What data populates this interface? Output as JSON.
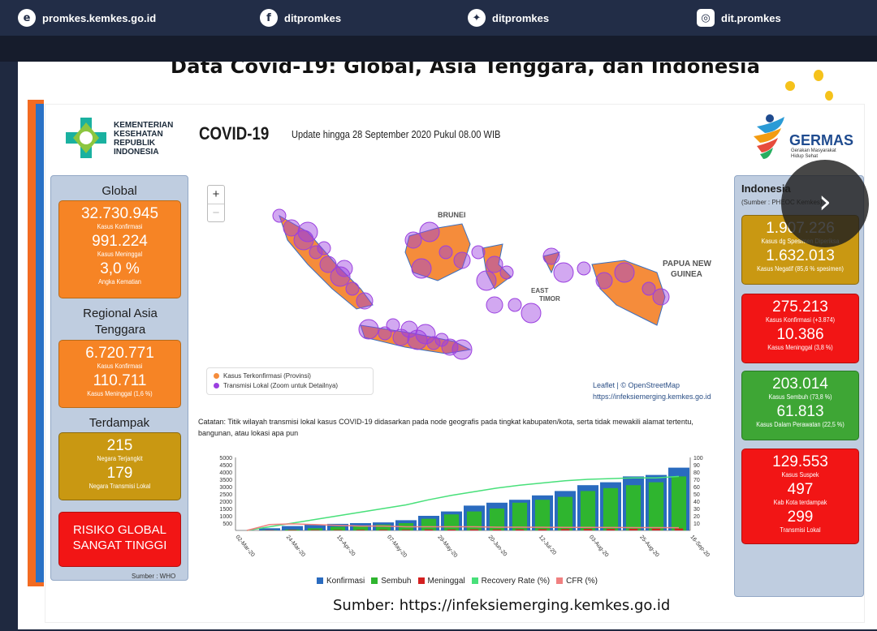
{
  "topbar": {
    "website": "promkes.kemkes.go.id",
    "facebook": "ditpromkes",
    "twitter": "ditpromkes",
    "instagram": "dit.promkes"
  },
  "slide_title": "Data Covid-19: Global, Asia Tenggara, dan Indonesia",
  "header": {
    "ministry": [
      "KEMENTERIAN",
      "KESEHATAN",
      "REPUBLIK",
      "INDONESIA"
    ],
    "covid_title": "COVID-19",
    "update": "Update hingga 28 September 2020 Pukul 08.00 WIB",
    "germas": "GERMAS",
    "germas_sub": [
      "Gerakan Masyarakat",
      "Hidup Sehat"
    ]
  },
  "global": {
    "label": "Global",
    "confirmed": "32.730.945",
    "confirmed_label": "Kasus Konfirmasi",
    "deaths": "991.224",
    "deaths_label": "Kasus Meninggal",
    "cfr": "3,0 %",
    "cfr_label": "Angka Kematian"
  },
  "sea": {
    "label": "Regional Asia Tenggara",
    "confirmed": "6.720.771",
    "confirmed_label": "Kasus Konfirmasi",
    "deaths": "110.711",
    "deaths_label": "Kasus Meninggal (1,6 %)"
  },
  "affected": {
    "label": "Terdampak",
    "countries": "215",
    "countries_label": "Negara Terjangkit",
    "local": "179",
    "local_label": "Negara Transmisi Lokal"
  },
  "risk": {
    "line1": "RISIKO GLOBAL",
    "line2": "SANGAT TINGGI"
  },
  "who_source": "Sumber : WHO",
  "indonesia": {
    "label": "Indonesia",
    "source": "(Sumber : PHEOC Kemkes)",
    "specimen": "1.907.226",
    "specimen_label": "Kasus dg Spesimen Diperiksa",
    "negative": "1.632.013",
    "negative_label": "Kasus Negatif (85,6 % spesimen)",
    "confirmed": "275.213",
    "confirmed_label": "Kasus Konfirmasi (+3.874)",
    "deaths": "10.386",
    "deaths_label": "Kasus Meninggal (3,8 %)",
    "recovered": "203.014",
    "recovered_label": "Kasus Sembuh (73,8 %)",
    "treated": "61.813",
    "treated_label": "Kasus Dalam Perawatan (22,5 %)",
    "suspect": "129.553",
    "suspect_label": "Kasus Suspek",
    "districts": "497",
    "districts_label": "Kab Kota terdampak",
    "local": "299",
    "local_label": "Transmisi Lokal"
  },
  "map": {
    "zoom_in": "+",
    "zoom_out": "−",
    "labels": {
      "brunei": "BRUNEI",
      "png1": "PAPUA NEW",
      "png2": "GUINEA",
      "et1": "EAST",
      "et2": "TIMOR"
    },
    "legend_provinces": "Kasus Terkonfirmasi (Provinsi)",
    "legend_local": "Transmisi Lokal (Zoom untuk Detailnya)",
    "attribution_leaflet": "Leaflet",
    "attribution_osm": "| © OpenStreetMap",
    "attribution_url": "https://infeksiemerging.kemkes.go.id"
  },
  "note": "Catatan: Titik wilayah transmisi lokal kasus COVID-19 didasarkan pada node geografis pada tingkat kabupaten/kota, serta tidak mewakili alamat tertentu, bangunan, atau lokasi apa pun",
  "chart_data": {
    "type": "bar",
    "x_tick_labels": [
      "02-Mar-20",
      "24-Mar-20",
      "15-Apr-20",
      "07-May-20",
      "29-May-20",
      "20-Jun-20",
      "12-Jul-20",
      "03-Aug-20",
      "25-Aug-20",
      "16-Sep-20"
    ],
    "y_left_ticks": [
      500,
      1000,
      1500,
      2000,
      2500,
      3000,
      3500,
      4000,
      4500,
      5000
    ],
    "y_right_ticks": [
      10,
      20,
      30,
      40,
      50,
      60,
      70,
      80,
      90,
      100
    ],
    "ylim_left": [
      0,
      5000
    ],
    "ylim_right": [
      0,
      100
    ],
    "series": [
      {
        "name": "Konfirmasi",
        "color": "#2a6bbf",
        "values": [
          2,
          150,
          300,
          400,
          450,
          500,
          550,
          700,
          1000,
          1300,
          1700,
          1900,
          2100,
          2400,
          2700,
          3100,
          3300,
          3700,
          3800,
          4300
        ]
      },
      {
        "name": "Sembuh",
        "color": "#2fb52f",
        "values": [
          1,
          20,
          60,
          150,
          250,
          300,
          400,
          500,
          800,
          1100,
          1300,
          1500,
          1900,
          2100,
          2300,
          2700,
          2900,
          3100,
          3300,
          3700
        ]
      },
      {
        "name": "Meninggal",
        "color": "#d42020",
        "values": [
          0,
          20,
          30,
          30,
          30,
          40,
          40,
          40,
          60,
          60,
          70,
          60,
          70,
          80,
          90,
          100,
          100,
          110,
          120,
          130
        ]
      },
      {
        "name": "Recovery Rate (%)",
        "color": "#48e07a",
        "values": [
          0,
          5,
          10,
          15,
          20,
          25,
          30,
          35,
          42,
          48,
          53,
          58,
          62,
          65,
          68,
          70,
          71,
          72,
          72,
          74
        ]
      },
      {
        "name": "CFR (%)",
        "color": "#f08080",
        "values": [
          0,
          8,
          9,
          8,
          7,
          6,
          6,
          5,
          5,
          5,
          5,
          4.5,
          4.5,
          4.3,
          4.2,
          4.1,
          4,
          3.9,
          3.9,
          3.8
        ]
      }
    ]
  },
  "source_caption": "Sumber: https://infeksiemerging.kemkes.go.id",
  "next_button": "›"
}
